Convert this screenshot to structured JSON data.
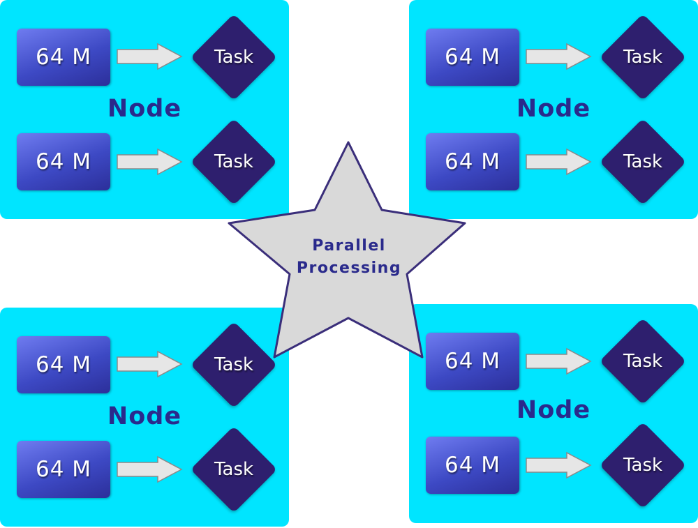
{
  "nodes": [
    {
      "label": "Node",
      "rows": [
        {
          "block": "64 M",
          "task": "Task"
        },
        {
          "block": "64 M",
          "task": "Task"
        }
      ]
    },
    {
      "label": "Node",
      "rows": [
        {
          "block": "64 M",
          "task": "Task"
        },
        {
          "block": "64 M",
          "task": "Task"
        }
      ]
    },
    {
      "label": "Node",
      "rows": [
        {
          "block": "64 M",
          "task": "Task"
        },
        {
          "block": "64 M",
          "task": "Task"
        }
      ]
    },
    {
      "label": "Node",
      "rows": [
        {
          "block": "64 M",
          "task": "Task"
        },
        {
          "block": "64 M",
          "task": "Task"
        }
      ]
    }
  ],
  "center": {
    "line1": "Parallel",
    "line2": "Processing"
  },
  "colors": {
    "node_bg": "#00e5ff",
    "block_gradient_start": "#6f7cf0",
    "block_gradient_end": "#2c2f9a",
    "task_fill": "#2e1f6e",
    "label_text": "#2a2a8c",
    "arrow_fill": "#e6e6e6",
    "star_fill": "#d9d9d9",
    "star_stroke": "#3a2e7a"
  }
}
